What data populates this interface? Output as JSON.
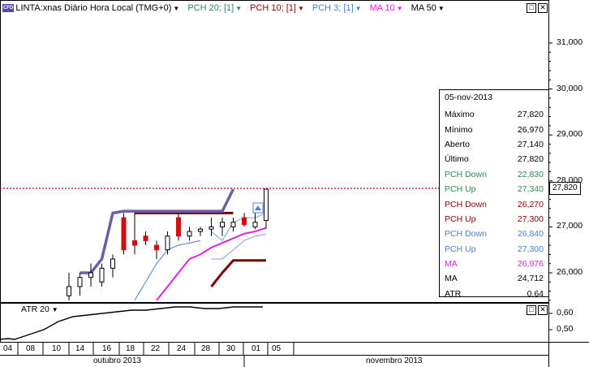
{
  "header": {
    "instrument": "LINTA:xnas Diário Hora Local (TMG+0)",
    "badge": "CFD",
    "indicators": [
      {
        "label": "PCH 20; [1]",
        "color": "#2e8b57"
      },
      {
        "label": "PCH 10; [1]",
        "color": "#8b0000"
      },
      {
        "label": "PCH 3; [1]",
        "color": "#4a7fd4"
      },
      {
        "label": "MA 10",
        "color": "#e020e0"
      },
      {
        "label": "MA 50",
        "color": "#000000"
      }
    ]
  },
  "price_axis": [
    "31,000",
    "30,000",
    "29,000",
    "28,000",
    "27,000",
    "26,000"
  ],
  "current_price": "27,820",
  "tooltip": {
    "date": "05-nov-2013",
    "rows": [
      {
        "label": "Máximo",
        "value": "27,820",
        "color": "#000000"
      },
      {
        "label": "Mínimo",
        "value": "26,970",
        "color": "#000000"
      },
      {
        "label": "Aberto",
        "value": "27,140",
        "color": "#000000"
      },
      {
        "label": "Último",
        "value": "27,820",
        "color": "#000000"
      },
      {
        "label": "PCH Down",
        "value": "22,830",
        "color": "#2e8b57"
      },
      {
        "label": "PCH Up",
        "value": "27,340",
        "color": "#2e8b57"
      },
      {
        "label": "PCH Down",
        "value": "26,270",
        "color": "#8b0000"
      },
      {
        "label": "PCH Up",
        "value": "27,300",
        "color": "#8b0000"
      },
      {
        "label": "PCH Down",
        "value": "26,840",
        "color": "#4a7fd4"
      },
      {
        "label": "PCH Up",
        "value": "27,300",
        "color": "#4a7fd4"
      },
      {
        "label": "MA",
        "value": "26,976",
        "color": "#e020e0"
      },
      {
        "label": "MA",
        "value": "24,712",
        "color": "#000000"
      },
      {
        "label": "ATR",
        "value": "0,64",
        "color": "#000000"
      }
    ]
  },
  "atr_panel": {
    "label": "ATR 20",
    "axis": [
      "0,60",
      "0,50"
    ]
  },
  "x_axis": {
    "days": [
      "04",
      "08",
      "10",
      "14",
      "16",
      "18",
      "22",
      "24",
      "28",
      "30",
      "01",
      "05"
    ],
    "months": [
      "outubro 2013",
      "novembro 2013"
    ]
  },
  "chart_data": {
    "type": "candlestick",
    "ylim": [
      25.4,
      31.8
    ],
    "candles": [
      {
        "open": 25.5,
        "high": 26.0,
        "low": 25.4,
        "close": 25.7,
        "up": true
      },
      {
        "open": 25.7,
        "high": 26.0,
        "low": 25.5,
        "close": 25.9,
        "up": true
      },
      {
        "open": 25.9,
        "high": 26.2,
        "low": 25.7,
        "close": 26.0,
        "up": true
      },
      {
        "open": 25.8,
        "high": 26.2,
        "low": 25.7,
        "close": 26.1,
        "up": true
      },
      {
        "open": 26.1,
        "high": 26.4,
        "low": 25.9,
        "close": 26.3,
        "up": true
      },
      {
        "open": 26.5,
        "high": 27.3,
        "low": 26.4,
        "close": 27.2,
        "up": false
      },
      {
        "open": 26.7,
        "high": 27.3,
        "low": 26.4,
        "close": 26.6,
        "up": false
      },
      {
        "open": 26.8,
        "high": 26.9,
        "low": 26.6,
        "close": 26.7,
        "up": false
      },
      {
        "open": 26.6,
        "high": 26.7,
        "low": 26.3,
        "close": 26.5,
        "up": false
      },
      {
        "open": 26.5,
        "high": 26.9,
        "low": 26.4,
        "close": 26.8,
        "up": true
      },
      {
        "open": 27.2,
        "high": 27.3,
        "low": 26.7,
        "close": 26.8,
        "up": false
      },
      {
        "open": 26.8,
        "high": 27.0,
        "low": 26.7,
        "close": 26.9,
        "up": true
      },
      {
        "open": 26.9,
        "high": 27.0,
        "low": 26.8,
        "close": 26.95,
        "up": true
      },
      {
        "open": 26.95,
        "high": 27.2,
        "low": 26.8,
        "close": 27.0,
        "up": true
      },
      {
        "open": 27.0,
        "high": 27.2,
        "low": 26.8,
        "close": 27.1,
        "up": true
      },
      {
        "open": 27.1,
        "high": 27.2,
        "low": 26.9,
        "close": 27.0,
        "up": true
      },
      {
        "open": 27.2,
        "high": 27.3,
        "low": 27.0,
        "close": 27.05,
        "up": false
      },
      {
        "open": 27.0,
        "high": 27.3,
        "low": 26.95,
        "close": 27.1,
        "up": true
      },
      {
        "open": 27.14,
        "high": 27.82,
        "low": 26.97,
        "close": 27.82,
        "up": true
      }
    ],
    "pch20_up": [
      26.0,
      26.0,
      26.3,
      27.3,
      27.34,
      27.34,
      27.34,
      27.34,
      27.34,
      27.34,
      27.34,
      27.34,
      27.34,
      27.34,
      27.82
    ],
    "pch10_up": [
      27.3,
      27.3,
      27.3,
      27.3,
      27.3,
      27.3,
      27.3,
      27.3,
      27.3,
      27.3
    ],
    "pch10_down": [
      25.7,
      26.0,
      26.27,
      26.27,
      26.27,
      26.27
    ],
    "pch3_up": [
      26.9,
      26.7,
      27.1,
      27.2,
      27.2,
      27.3
    ],
    "pch3_down": [
      26.3,
      26.3,
      26.5,
      26.7,
      26.8,
      26.84
    ],
    "ma10": [
      25.4,
      25.7,
      26.0,
      26.3,
      26.4,
      26.55,
      26.65,
      26.75,
      26.85,
      26.9,
      26.976
    ],
    "atr": [
      0.44,
      0.47,
      0.5,
      0.55,
      0.58,
      0.59,
      0.6,
      0.61,
      0.62,
      0.62,
      0.63,
      0.64,
      0.64,
      0.63,
      0.63,
      0.64,
      0.64,
      0.64
    ]
  }
}
